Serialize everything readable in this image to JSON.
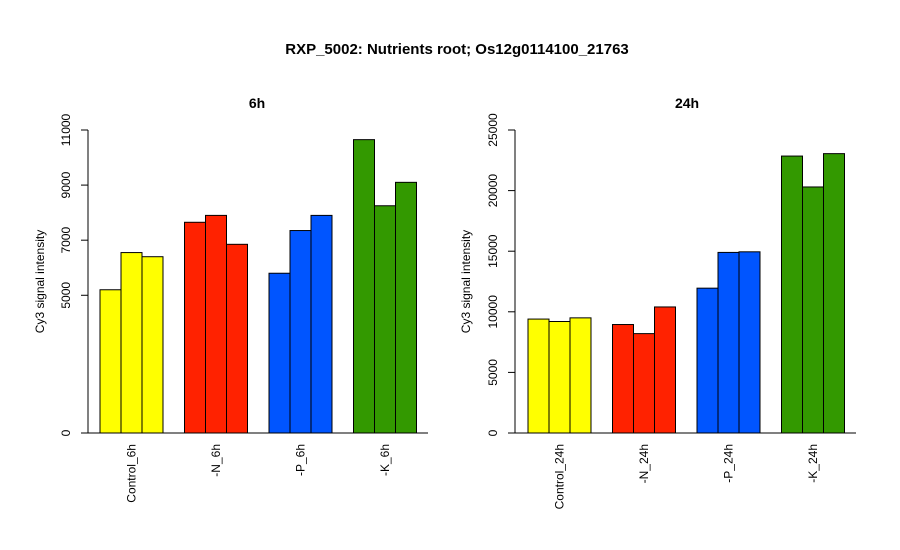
{
  "title": "RXP_5002: Nutrients root; Os12g0114100_21763",
  "chart_data": [
    {
      "type": "bar",
      "title": "6h",
      "ylabel": "Cy3 signal intensity",
      "ylim": [
        0,
        11000
      ],
      "yticks": [
        0,
        5000,
        7000,
        9000,
        11000
      ],
      "categories": [
        "Control_6h",
        "-N_6h",
        "-P_6h",
        "-K_6h"
      ],
      "colors": [
        "#FFFF00",
        "#FF2200",
        "#0055FF",
        "#339900"
      ],
      "values": [
        [
          5200,
          6550,
          6400
        ],
        [
          7650,
          7900,
          6850
        ],
        [
          5800,
          7350,
          7900
        ],
        [
          10650,
          8250,
          9100
        ]
      ]
    },
    {
      "type": "bar",
      "title": "24h",
      "ylabel": "Cy3 signal intensity",
      "ylim": [
        0,
        25000
      ],
      "yticks": [
        0,
        5000,
        10000,
        15000,
        20000,
        25000
      ],
      "categories": [
        "Control_24h",
        "-N_24h",
        "-P_24h",
        "-K_24h"
      ],
      "colors": [
        "#FFFF00",
        "#FF2200",
        "#0055FF",
        "#339900"
      ],
      "values": [
        [
          9400,
          9200,
          9500
        ],
        [
          8950,
          8200,
          10400
        ],
        [
          11950,
          14900,
          14950
        ],
        [
          22850,
          20300,
          23050
        ]
      ]
    }
  ]
}
